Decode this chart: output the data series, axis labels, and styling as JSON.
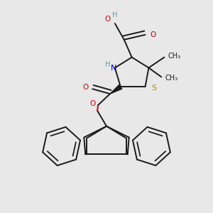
{
  "bg_color": "#e8e8e8",
  "bond_color": "#1a1a1a",
  "N_color": "#0000cc",
  "O_color": "#cc0000",
  "S_color": "#999900",
  "H_color": "#5f9ea0",
  "figsize": [
    3.0,
    3.0
  ],
  "dpi": 100,
  "xlim": [
    0,
    3.0
  ],
  "ylim": [
    0,
    3.0
  ]
}
